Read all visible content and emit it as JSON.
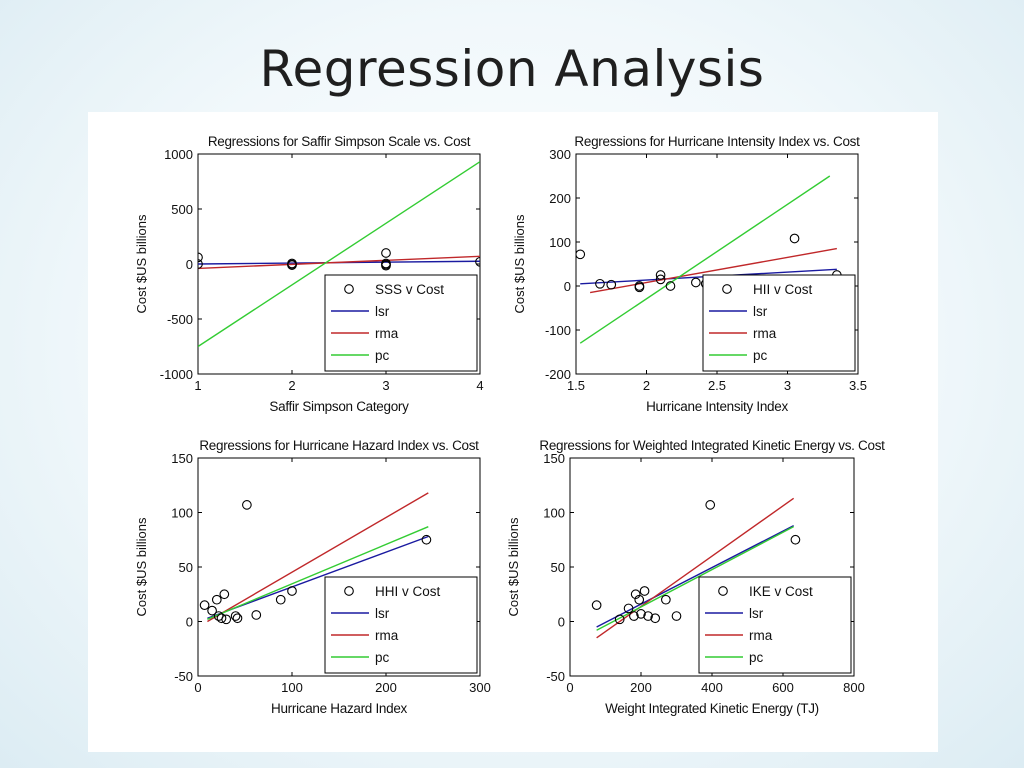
{
  "slide": {
    "title": "Regression Analysis"
  },
  "chart_data": [
    {
      "type": "scatter",
      "title": "Regressions for Saffir Simpson Scale vs. Cost",
      "xlabel": "Saffir Simpson Category",
      "ylabel": "Cost $US billions",
      "xlim": [
        1,
        4
      ],
      "ylim": [
        -1000,
        1000
      ],
      "xticks": [
        1,
        2,
        3,
        4
      ],
      "yticks": [
        1000,
        500,
        0,
        -500,
        -1000
      ],
      "grid": false,
      "legend_position": "bottom-right",
      "series": [
        {
          "name": "SSS v Cost",
          "kind": "points",
          "color": "#000000",
          "points": [
            [
              1,
              60
            ],
            [
              1,
              0
            ],
            [
              2,
              5
            ],
            [
              2,
              -5
            ],
            [
              2,
              -10
            ],
            [
              3,
              100
            ],
            [
              3,
              5
            ],
            [
              3,
              -5
            ],
            [
              3,
              -15
            ],
            [
              4,
              20
            ]
          ]
        },
        {
          "name": "lsr",
          "kind": "line",
          "color": "#1a1aa0",
          "points": [
            [
              1,
              0
            ],
            [
              4,
              25
            ]
          ]
        },
        {
          "name": "rma",
          "kind": "line",
          "color": "#c0282a",
          "points": [
            [
              1,
              -40
            ],
            [
              4,
              70
            ]
          ]
        },
        {
          "name": "pc",
          "kind": "line",
          "color": "#33cc33",
          "points": [
            [
              1,
              -750
            ],
            [
              4,
              930
            ]
          ]
        }
      ]
    },
    {
      "type": "scatter",
      "title": "Regressions for Hurricane Intensity Index vs. Cost",
      "xlabel": "Hurricane Intensity Index",
      "ylabel": "Cost $US billions",
      "xlim": [
        1.5,
        3.5
      ],
      "ylim": [
        -200,
        300
      ],
      "xticks": [
        1.5,
        2,
        2.5,
        3,
        3.5
      ],
      "yticks": [
        300,
        200,
        100,
        0,
        -100,
        -200
      ],
      "grid": false,
      "legend_position": "bottom-right",
      "series": [
        {
          "name": "HII v Cost",
          "kind": "points",
          "color": "#000000",
          "points": [
            [
              1.53,
              72
            ],
            [
              1.67,
              5
            ],
            [
              1.75,
              3
            ],
            [
              1.95,
              0
            ],
            [
              1.95,
              -3
            ],
            [
              2.1,
              25
            ],
            [
              2.1,
              15
            ],
            [
              2.17,
              0
            ],
            [
              2.35,
              8
            ],
            [
              2.42,
              5
            ],
            [
              3.05,
              108
            ],
            [
              3.35,
              25
            ]
          ]
        },
        {
          "name": "lsr",
          "kind": "line",
          "color": "#1a1aa0",
          "points": [
            [
              1.53,
              5
            ],
            [
              3.35,
              38
            ]
          ]
        },
        {
          "name": "rma",
          "kind": "line",
          "color": "#c0282a",
          "points": [
            [
              1.6,
              -15
            ],
            [
              3.35,
              85
            ]
          ]
        },
        {
          "name": "pc",
          "kind": "line",
          "color": "#33cc33",
          "points": [
            [
              1.53,
              -130
            ],
            [
              3.3,
              250
            ]
          ]
        }
      ]
    },
    {
      "type": "scatter",
      "title": "Regressions for Hurricane Hazard Index vs. Cost",
      "xlabel": "Hurricane Hazard Index",
      "ylabel": "Cost $US billions",
      "xlim": [
        0,
        300
      ],
      "ylim": [
        -50,
        150
      ],
      "xticks": [
        0,
        100,
        200,
        300
      ],
      "yticks": [
        150,
        100,
        50,
        0,
        -50
      ],
      "grid": false,
      "legend_position": "bottom-right",
      "series": [
        {
          "name": "HHI v Cost",
          "kind": "points",
          "color": "#000000",
          "points": [
            [
              7,
              15
            ],
            [
              15,
              10
            ],
            [
              20,
              20
            ],
            [
              22,
              5
            ],
            [
              25,
              3
            ],
            [
              28,
              25
            ],
            [
              30,
              2
            ],
            [
              40,
              5
            ],
            [
              42,
              3
            ],
            [
              52,
              107
            ],
            [
              62,
              6
            ],
            [
              88,
              20
            ],
            [
              100,
              28
            ],
            [
              243,
              75
            ]
          ]
        },
        {
          "name": "lsr",
          "kind": "line",
          "color": "#1a1aa0",
          "points": [
            [
              10,
              3
            ],
            [
              245,
              78
            ]
          ]
        },
        {
          "name": "rma",
          "kind": "line",
          "color": "#c0282a",
          "points": [
            [
              10,
              0
            ],
            [
              245,
              118
            ]
          ]
        },
        {
          "name": "pc",
          "kind": "line",
          "color": "#33cc33",
          "points": [
            [
              10,
              2
            ],
            [
              245,
              87
            ]
          ]
        }
      ]
    },
    {
      "type": "scatter",
      "title": "Regressions for Weighted Integrated Kinetic Energy vs. Cost",
      "xlabel": "Weight Integrated Kinetic Energy (TJ)",
      "ylabel": "Cost $US billions",
      "xlim": [
        0,
        800
      ],
      "ylim": [
        -50,
        150
      ],
      "xticks": [
        0,
        200,
        400,
        600,
        800
      ],
      "yticks": [
        150,
        100,
        50,
        0,
        -50
      ],
      "grid": false,
      "legend_position": "bottom-right",
      "series": [
        {
          "name": "IKE v Cost",
          "kind": "points",
          "color": "#000000",
          "points": [
            [
              75,
              15
            ],
            [
              140,
              2
            ],
            [
              165,
              12
            ],
            [
              180,
              5
            ],
            [
              185,
              25
            ],
            [
              195,
              20
            ],
            [
              200,
              7
            ],
            [
              210,
              28
            ],
            [
              220,
              5
            ],
            [
              240,
              3
            ],
            [
              270,
              20
            ],
            [
              300,
              5
            ],
            [
              395,
              107
            ],
            [
              635,
              75
            ]
          ]
        },
        {
          "name": "lsr",
          "kind": "line",
          "color": "#1a1aa0",
          "points": [
            [
              75,
              -5
            ],
            [
              630,
              88
            ]
          ]
        },
        {
          "name": "rma",
          "kind": "line",
          "color": "#c0282a",
          "points": [
            [
              75,
              -15
            ],
            [
              630,
              113
            ]
          ]
        },
        {
          "name": "pc",
          "kind": "line",
          "color": "#33cc33",
          "points": [
            [
              75,
              -8
            ],
            [
              630,
              87
            ]
          ]
        }
      ]
    }
  ]
}
